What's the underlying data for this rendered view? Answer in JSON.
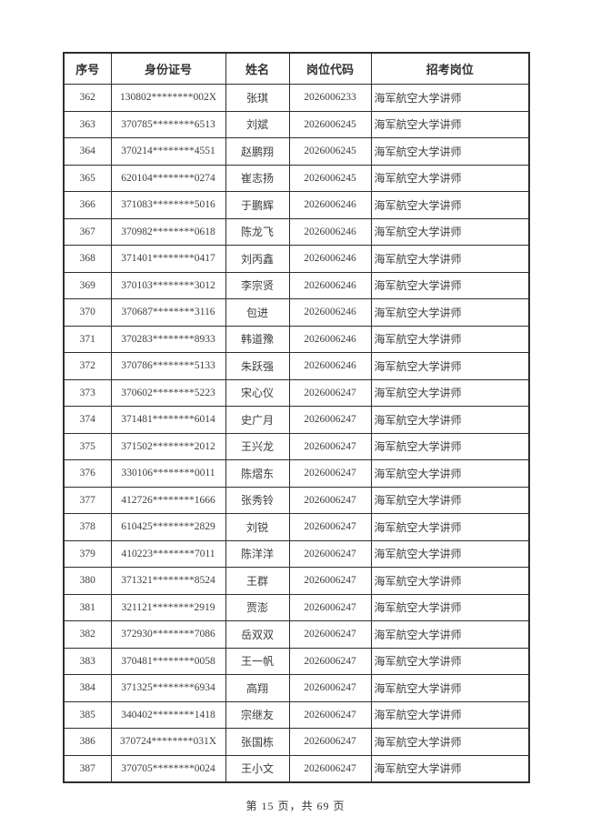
{
  "table": {
    "headers": [
      "序号",
      "身份证号",
      "姓名",
      "岗位代码",
      "招考岗位"
    ],
    "rows": [
      [
        "362",
        "130802********002X",
        "张琪",
        "2026006233",
        "海军航空大学讲师"
      ],
      [
        "363",
        "370785********6513",
        "刘斌",
        "2026006245",
        "海军航空大学讲师"
      ],
      [
        "364",
        "370214********4551",
        "赵鹏翔",
        "2026006245",
        "海军航空大学讲师"
      ],
      [
        "365",
        "620104********0274",
        "崔志扬",
        "2026006245",
        "海军航空大学讲师"
      ],
      [
        "366",
        "371083********5016",
        "于鹏辉",
        "2026006246",
        "海军航空大学讲师"
      ],
      [
        "367",
        "370982********0618",
        "陈龙飞",
        "2026006246",
        "海军航空大学讲师"
      ],
      [
        "368",
        "371401********0417",
        "刘丙鑫",
        "2026006246",
        "海军航空大学讲师"
      ],
      [
        "369",
        "370103********3012",
        "李宗贤",
        "2026006246",
        "海军航空大学讲师"
      ],
      [
        "370",
        "370687********3116",
        "包进",
        "2026006246",
        "海军航空大学讲师"
      ],
      [
        "371",
        "370283********8933",
        "韩道豫",
        "2026006246",
        "海军航空大学讲师"
      ],
      [
        "372",
        "370786********5133",
        "朱跃强",
        "2026006246",
        "海军航空大学讲师"
      ],
      [
        "373",
        "370602********5223",
        "宋心仪",
        "2026006247",
        "海军航空大学讲师"
      ],
      [
        "374",
        "371481********6014",
        "史广月",
        "2026006247",
        "海军航空大学讲师"
      ],
      [
        "375",
        "371502********2012",
        "王兴龙",
        "2026006247",
        "海军航空大学讲师"
      ],
      [
        "376",
        "330106********0011",
        "陈熠东",
        "2026006247",
        "海军航空大学讲师"
      ],
      [
        "377",
        "412726********1666",
        "张秀铃",
        "2026006247",
        "海军航空大学讲师"
      ],
      [
        "378",
        "610425********2829",
        "刘锐",
        "2026006247",
        "海军航空大学讲师"
      ],
      [
        "379",
        "410223********7011",
        "陈洋洋",
        "2026006247",
        "海军航空大学讲师"
      ],
      [
        "380",
        "371321********8524",
        "王群",
        "2026006247",
        "海军航空大学讲师"
      ],
      [
        "381",
        "321121********2919",
        "贾澎",
        "2026006247",
        "海军航空大学讲师"
      ],
      [
        "382",
        "372930********7086",
        "岳双双",
        "2026006247",
        "海军航空大学讲师"
      ],
      [
        "383",
        "370481********0058",
        "王一帆",
        "2026006247",
        "海军航空大学讲师"
      ],
      [
        "384",
        "371325********6934",
        "高翔",
        "2026006247",
        "海军航空大学讲师"
      ],
      [
        "385",
        "340402********1418",
        "宗继友",
        "2026006247",
        "海军航空大学讲师"
      ],
      [
        "386",
        "370724********031X",
        "张国栋",
        "2026006247",
        "海军航空大学讲师"
      ],
      [
        "387",
        "370705********0024",
        "王小文",
        "2026006247",
        "海军航空大学讲师"
      ]
    ]
  },
  "footer": {
    "page_info": "第 15 页，共 69 页"
  },
  "colors": {
    "text": "#3d3d3d",
    "border": "#2e2e2e",
    "background": "#ffffff"
  }
}
